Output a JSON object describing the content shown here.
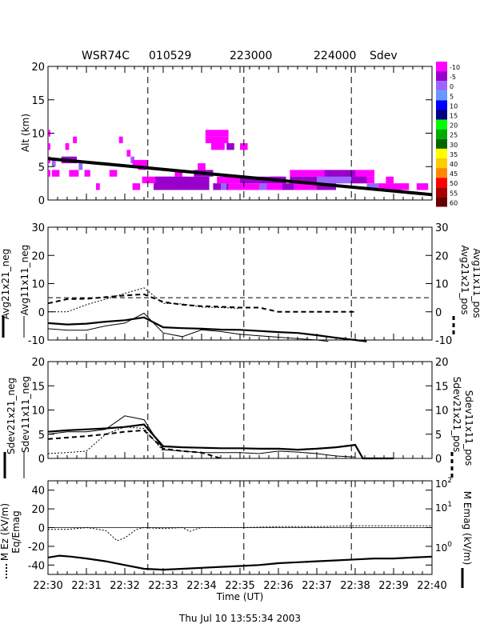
{
  "header": {
    "radar": "WSR74C",
    "date": "010529",
    "time_start": "223000",
    "time_end": "224000",
    "product": "Sdev"
  },
  "footer": {
    "timestamp": "Thu Jul 10 13:55:34 2003"
  },
  "colors": {
    "ink": "#000000",
    "bg": "#ffffff"
  },
  "colorbar": {
    "labels": [
      "-10",
      "-5",
      "0",
      "5",
      "10",
      "15",
      "20",
      "25",
      "30",
      "35",
      "40",
      "45",
      "50",
      "55",
      "60"
    ],
    "colors": [
      "#ff00ff",
      "#9900cc",
      "#9966ff",
      "#6699ff",
      "#0000ff",
      "#000080",
      "#00ff00",
      "#00aa00",
      "#006600",
      "#ffff00",
      "#ffcc00",
      "#ff8800",
      "#ff0000",
      "#aa0000",
      "#660000"
    ]
  },
  "chart_data": [
    {
      "type": "heatmap",
      "panel": "altitude",
      "ylabel": "Alt (km)",
      "ylim": [
        0,
        20
      ],
      "yticks": [
        0,
        5,
        10,
        15,
        20
      ],
      "xlim_min": [
        0,
        10
      ],
      "flight_track": {
        "x": [
          0,
          10
        ],
        "y": [
          6.2,
          0.8
        ]
      },
      "cells": [
        [
          0.0,
          9.5,
          0.06,
          1,
          "#ff00ff"
        ],
        [
          0.0,
          7.5,
          0.06,
          1,
          "#ff00ff"
        ],
        [
          0.0,
          5.5,
          0.06,
          1,
          "#ff00ff"
        ],
        [
          0.0,
          3.5,
          0.06,
          1,
          "#ff00ff"
        ],
        [
          0.1,
          5.0,
          0.1,
          1,
          "#9966ff"
        ],
        [
          0.1,
          3.5,
          0.2,
          1,
          "#ff00ff"
        ],
        [
          0.45,
          7.5,
          0.1,
          1,
          "#ff00ff"
        ],
        [
          0.65,
          8.5,
          0.1,
          1,
          "#ff00ff"
        ],
        [
          0.35,
          5.5,
          0.4,
          1,
          "#9900cc"
        ],
        [
          0.55,
          3.5,
          0.25,
          1,
          "#ff00ff"
        ],
        [
          0.8,
          4.5,
          0.1,
          1,
          "#9966ff"
        ],
        [
          0.95,
          3.5,
          0.15,
          1,
          "#ff00ff"
        ],
        [
          1.25,
          1.5,
          0.1,
          1,
          "#ff00ff"
        ],
        [
          1.85,
          8.5,
          0.1,
          1,
          "#ff00ff"
        ],
        [
          1.6,
          3.5,
          0.2,
          1,
          "#ff00ff"
        ],
        [
          2.05,
          6.5,
          0.1,
          1,
          "#ff00ff"
        ],
        [
          2.15,
          5.5,
          0.1,
          1,
          "#9966ff"
        ],
        [
          2.2,
          5.0,
          0.4,
          1,
          "#ff00ff"
        ],
        [
          2.35,
          4.5,
          0.2,
          1,
          "#ff00ff"
        ],
        [
          2.45,
          2.5,
          0.4,
          1,
          "#ff00ff"
        ],
        [
          2.2,
          1.5,
          0.2,
          1,
          "#ff00ff"
        ],
        [
          2.75,
          1.5,
          0.5,
          1,
          "#9900cc"
        ],
        [
          2.8,
          2.5,
          0.8,
          1,
          "#ff00ff"
        ],
        [
          2.8,
          1.5,
          1.4,
          2,
          "#9900cc"
        ],
        [
          3.3,
          3.5,
          0.2,
          1,
          "#ff00ff"
        ],
        [
          3.8,
          3.5,
          0.5,
          1,
          "#9900cc"
        ],
        [
          3.9,
          4.5,
          0.2,
          1,
          "#ff00ff"
        ],
        [
          4.4,
          2.5,
          0.6,
          1,
          "#ff00ff"
        ],
        [
          4.3,
          1.5,
          0.4,
          1,
          "#9900cc"
        ],
        [
          4.5,
          1.5,
          0.15,
          1,
          "#9966ff"
        ],
        [
          4.7,
          1.5,
          0.3,
          1,
          "#ff00ff"
        ],
        [
          4.1,
          9.5,
          0.6,
          1,
          "#ff00ff"
        ],
        [
          4.1,
          8.5,
          0.6,
          1,
          "#ff00ff"
        ],
        [
          4.25,
          7.5,
          0.35,
          1,
          "#ff00ff"
        ],
        [
          4.65,
          7.5,
          0.2,
          1,
          "#9900cc"
        ],
        [
          5.0,
          7.5,
          0.2,
          1,
          "#ff00ff"
        ],
        [
          5.0,
          2.5,
          1.2,
          1,
          "#9900cc"
        ],
        [
          5.0,
          1.5,
          1.2,
          1,
          "#ff00ff"
        ],
        [
          5.8,
          2.5,
          0.3,
          1,
          "#9900cc"
        ],
        [
          6.1,
          1.5,
          0.4,
          1,
          "#9900cc"
        ],
        [
          5.5,
          1.5,
          0.2,
          1,
          "#9966ff"
        ],
        [
          6.3,
          3.5,
          1.1,
          1,
          "#ff00ff"
        ],
        [
          6.3,
          2.5,
          2.0,
          1,
          "#9900cc"
        ],
        [
          7.3,
          2.5,
          0.6,
          1,
          "#9966ff"
        ],
        [
          7.2,
          3.5,
          0.8,
          1,
          "#9900cc"
        ],
        [
          8.0,
          3.5,
          0.5,
          1,
          "#ff00ff"
        ],
        [
          8.0,
          2.5,
          0.5,
          1,
          "#ff00ff"
        ],
        [
          7.9,
          2.5,
          0.4,
          1,
          "#9900cc"
        ],
        [
          8.3,
          1.5,
          0.3,
          1,
          "#9966ff"
        ],
        [
          6.4,
          1.5,
          0.9,
          1,
          "#ff00ff"
        ],
        [
          7.0,
          1.5,
          0.5,
          1,
          "#9900cc"
        ],
        [
          8.6,
          1.5,
          0.8,
          1,
          "#ff00ff"
        ],
        [
          9.6,
          1.5,
          0.3,
          1,
          "#ff00ff"
        ],
        [
          8.8,
          2.5,
          0.2,
          1,
          "#ff00ff"
        ],
        [
          7.0,
          2.5,
          0.3,
          1,
          "#9966ff"
        ]
      ]
    },
    {
      "type": "line",
      "panel": "avg",
      "ylim": [
        -10,
        30
      ],
      "yticks": [
        -10,
        0,
        10,
        20,
        30
      ],
      "left_labels": [
        "Avg21x21_neg",
        "Avg11x11_neg"
      ],
      "right_labels": [
        "Avg21x21_pos",
        "Avg11x11_pos"
      ],
      "right_ticks": [
        "-10",
        "0",
        "5",
        "10",
        "20",
        "30"
      ],
      "reference_line_y": 5,
      "series": [
        {
          "name": "Avg21x21_neg",
          "style": "thick",
          "x": [
            0,
            0.5,
            1,
            1.5,
            2,
            2.5,
            3,
            3.5,
            4,
            4.5,
            5,
            5.5,
            6,
            6.5,
            7,
            7.5,
            8,
            8.3
          ],
          "y": [
            -4,
            -4.5,
            -4.2,
            -3.5,
            -3,
            -2,
            -5.5,
            -5.8,
            -6,
            -6.3,
            -6.4,
            -6.8,
            -7.2,
            -7.5,
            -8.3,
            -9.2,
            -10,
            -10.5
          ]
        },
        {
          "name": "Avg11x11_neg",
          "style": "thin",
          "x": [
            0,
            0.5,
            1,
            1.5,
            2,
            2.5,
            3,
            3.5,
            4,
            4.5,
            5,
            5.5,
            6,
            6.5,
            7,
            7.3
          ],
          "y": [
            -6,
            -6.5,
            -6.5,
            -5,
            -4,
            -0.5,
            -7.5,
            -8.8,
            -6.4,
            -7,
            -8,
            -8.5,
            -9,
            -9.5,
            -10,
            -10.5
          ]
        },
        {
          "name": "Avg21x21_pos",
          "style": "dashed",
          "x": [
            0,
            0.5,
            1,
            1.5,
            2,
            2.5,
            3,
            3.5,
            4,
            4.5,
            5,
            5.5,
            6,
            6.5,
            7,
            7.5,
            8
          ],
          "y": [
            3,
            4.5,
            4.6,
            5.2,
            5.8,
            6.2,
            3.5,
            2.5,
            2,
            1.8,
            1.5,
            1.5,
            0,
            0,
            0,
            0,
            0
          ]
        },
        {
          "name": "Avg11x11_pos",
          "style": "dotted",
          "x": [
            0,
            0.5,
            1,
            1.5,
            2,
            2.5,
            3,
            3.5,
            4,
            4.5,
            5
          ],
          "y": [
            0,
            0,
            2.5,
            4.5,
            6.5,
            8.5,
            3,
            2.8,
            1.7,
            1.5,
            1.2
          ]
        }
      ]
    },
    {
      "type": "line",
      "panel": "sdev",
      "ylim": [
        0,
        20
      ],
      "yticks": [
        0,
        5,
        10,
        15,
        20
      ],
      "left_labels": [
        "Sdev21x21_neg",
        "Sdev11x11_neg"
      ],
      "right_labels": [
        "Sdev21x21_pos",
        "Sdev11x11_pos"
      ],
      "series": [
        {
          "name": "Sdev21x21_neg",
          "style": "thick",
          "x": [
            0,
            0.5,
            1,
            1.5,
            2,
            2.5,
            3,
            3.5,
            4,
            4.5,
            5,
            5.5,
            6,
            6.5,
            7,
            7.5,
            8,
            8.2,
            9
          ],
          "y": [
            5.5,
            5.8,
            6,
            6.2,
            6.5,
            7,
            2.5,
            2.3,
            2.2,
            2.1,
            2.1,
            2,
            2,
            1.8,
            2,
            2.3,
            2.8,
            0,
            0
          ]
        },
        {
          "name": "Sdev11x11_neg",
          "style": "thin",
          "x": [
            0,
            0.5,
            1,
            1.5,
            2,
            2.5,
            3,
            3.5,
            4,
            4.5,
            5,
            5.5,
            6,
            6.5,
            7,
            7.5,
            8
          ],
          "y": [
            5,
            5.5,
            5.5,
            6,
            8.8,
            8,
            1.8,
            1.5,
            1.2,
            1.2,
            1.2,
            1,
            1.5,
            1.3,
            1,
            0.5,
            0.3
          ]
        },
        {
          "name": "Sdev21x21_pos",
          "style": "dashed",
          "x": [
            0,
            0.5,
            1,
            1.5,
            2,
            2.5,
            3,
            3.5,
            4,
            4.5
          ],
          "y": [
            4,
            4.3,
            4.6,
            5,
            5.5,
            5.8,
            2,
            1.5,
            1.2,
            0
          ]
        },
        {
          "name": "Sdev11x11_pos",
          "style": "dotted",
          "x": [
            0,
            0.5,
            1,
            1.5,
            2,
            2.5,
            3
          ],
          "y": [
            1,
            1.2,
            1.5,
            5,
            6.5,
            6.2,
            1.5
          ]
        }
      ]
    },
    {
      "type": "line",
      "panel": "efield",
      "ylim": [
        -50,
        50
      ],
      "yticks": [
        -40,
        -20,
        0,
        20,
        40
      ],
      "left_labels": [
        "M Ez (kV/m)",
        "Eq/Emag"
      ],
      "right_labels": [
        "M Emag (kV/m)"
      ],
      "right_ticks": [
        "10^2",
        "10^1",
        "10^0"
      ],
      "series": [
        {
          "name": "Ez",
          "style": "thick",
          "x": [
            0,
            0.3,
            0.6,
            1,
            1.5,
            2,
            2.5,
            3,
            3.5,
            4,
            4.5,
            5,
            5.5,
            6,
            6.5,
            7,
            7.5,
            8,
            8.5,
            9,
            9.5,
            10
          ],
          "y": [
            -32,
            -30,
            -31,
            -33,
            -36,
            -40,
            -44,
            -45,
            -44,
            -43,
            -42,
            -41,
            -40,
            -38,
            -37,
            -36,
            -35,
            -34,
            -33,
            -33,
            -32,
            -31
          ]
        },
        {
          "name": "Eq/Emag",
          "style": "dotted",
          "x": [
            0,
            0.5,
            1,
            1.5,
            1.8,
            2,
            2.3,
            2.5,
            3,
            3.5,
            3.7,
            3.9,
            4,
            5,
            6,
            7,
            8,
            9,
            10
          ],
          "y": [
            -2,
            -2,
            0,
            -3,
            -14,
            -11,
            -2,
            0,
            -1,
            0,
            -4,
            -1,
            0,
            0,
            1,
            1,
            2,
            2,
            2
          ]
        }
      ]
    }
  ],
  "xaxis": {
    "label": "Time (UT)",
    "ticks": [
      "22:30",
      "22:31",
      "22:32",
      "22:33",
      "22:34",
      "22:35",
      "22:36",
      "22:37",
      "22:38",
      "22:39",
      "22:40"
    ]
  },
  "event_markers_minutes": [
    2.6,
    5.1,
    7.9
  ]
}
